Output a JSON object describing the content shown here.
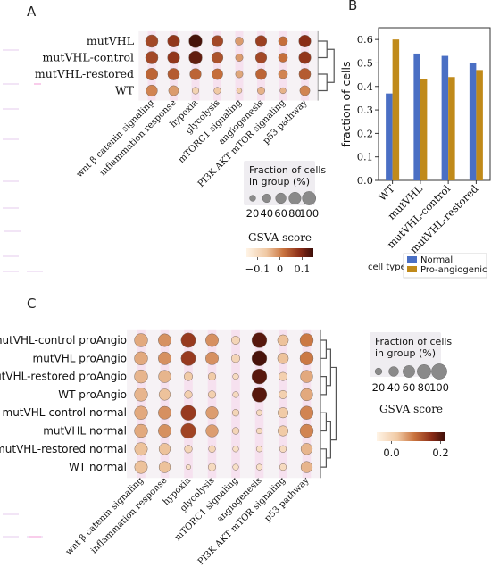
{
  "panel_labels": [
    "A",
    "B",
    "C"
  ],
  "colors": {
    "normal": "#4a6fc4",
    "proangio": "#c08a1a",
    "gsva_low": "#fff4e6",
    "gsva_high": "#3a0d08",
    "dendrogram": "#555555",
    "pink_marks": "#f5a6dc"
  },
  "chart_data": [
    {
      "panel": "A",
      "type": "heatmap",
      "rows": [
        "mutVHL",
        "mutVHL-control",
        "mutVHL-restored",
        "WT"
      ],
      "columns": [
        "wnt β catenin signaling",
        "inflammation response",
        "hypoxia",
        "glycolysis",
        "mTORC1 signaling",
        "angiogenesis",
        "PI3K AKT mTOR signaling",
        "p53 pathway"
      ],
      "fraction_pct": [
        [
          85,
          80,
          95,
          70,
          35,
          70,
          45,
          80
        ],
        [
          85,
          80,
          95,
          70,
          30,
          70,
          45,
          80
        ],
        [
          80,
          75,
          70,
          65,
          30,
          65,
          45,
          75
        ],
        [
          70,
          55,
          25,
          25,
          15,
          30,
          20,
          55
        ]
      ],
      "gsva": [
        [
          0.06,
          0.08,
          0.14,
          0.06,
          -0.02,
          0.07,
          0.02,
          0.09
        ],
        [
          0.06,
          0.08,
          0.12,
          0.05,
          -0.02,
          0.06,
          0.02,
          0.08
        ],
        [
          0.03,
          0.04,
          0.03,
          0.02,
          -0.03,
          0.03,
          0.0,
          0.04
        ],
        [
          0.0,
          -0.02,
          -0.08,
          -0.06,
          -0.07,
          -0.04,
          -0.04,
          0.0
        ]
      ],
      "size_legend": {
        "title": "Fraction of cells\nin group (%)",
        "values": [
          20,
          40,
          60,
          80,
          100
        ]
      },
      "color_legend": {
        "title": "GSVA score",
        "ticks": [
          "−0.1",
          "0",
          "0.1"
        ],
        "range": [
          -0.15,
          0.15
        ]
      }
    },
    {
      "panel": "B",
      "type": "bar",
      "categories": [
        "WT",
        "mutVHL",
        "mutVHL-control",
        "mutVHL-restored"
      ],
      "series": [
        {
          "name": "Normal",
          "values": [
            0.37,
            0.54,
            0.53,
            0.5
          ]
        },
        {
          "name": "Pro-angiogenic",
          "values": [
            0.6,
            0.43,
            0.44,
            0.47
          ]
        }
      ],
      "ylabel": "fraction of cells",
      "ylim": [
        0,
        0.65
      ],
      "yticks": [
        0.0,
        0.1,
        0.2,
        0.3,
        0.4,
        0.5,
        0.6
      ],
      "legend_title": "cell type",
      "legend_position": "bottom"
    },
    {
      "panel": "C",
      "type": "heatmap",
      "rows": [
        "mutVHL-control proAngio",
        "mutVHL proAngio",
        "mutVHL-restored proAngio",
        "WT proAngio",
        "mutVHL-control normal",
        "mutVHL normal",
        "mutVHL-restored normal",
        "WT normal"
      ],
      "columns": [
        "wnt β catenin signaling",
        "inflammation response",
        "hypoxia",
        "glycolysis",
        "mTORC1 signaling",
        "angiogenesis",
        "PI3K AKT mTOR signaling",
        "p53 pathway"
      ],
      "fraction_pct": [
        [
          75,
          70,
          90,
          70,
          30,
          95,
          50,
          75
        ],
        [
          75,
          70,
          90,
          70,
          30,
          95,
          50,
          75
        ],
        [
          75,
          65,
          30,
          25,
          15,
          95,
          30,
          65
        ],
        [
          75,
          55,
          25,
          25,
          15,
          95,
          30,
          65
        ],
        [
          75,
          70,
          95,
          65,
          20,
          15,
          45,
          75
        ],
        [
          75,
          70,
          95,
          65,
          20,
          15,
          45,
          75
        ],
        [
          70,
          55,
          25,
          20,
          15,
          15,
          20,
          55
        ],
        [
          70,
          55,
          10,
          25,
          15,
          15,
          20,
          55
        ]
      ],
      "gsva": [
        [
          0.05,
          0.07,
          0.15,
          0.07,
          0.0,
          0.2,
          0.03,
          0.09
        ],
        [
          0.05,
          0.07,
          0.15,
          0.07,
          0.0,
          0.21,
          0.03,
          0.09
        ],
        [
          0.04,
          0.04,
          0.02,
          0.02,
          -0.01,
          0.2,
          0.01,
          0.05
        ],
        [
          0.04,
          0.03,
          0.01,
          0.01,
          -0.01,
          0.2,
          0.01,
          0.05
        ],
        [
          0.05,
          0.07,
          0.15,
          0.06,
          0.0,
          -0.01,
          0.02,
          0.08
        ],
        [
          0.05,
          0.07,
          0.14,
          0.06,
          0.0,
          -0.01,
          0.02,
          0.08
        ],
        [
          0.03,
          0.03,
          0.0,
          0.0,
          -0.02,
          -0.02,
          -0.01,
          0.04
        ],
        [
          0.03,
          0.03,
          -0.02,
          -0.01,
          -0.02,
          -0.02,
          -0.01,
          0.04
        ]
      ],
      "size_legend": {
        "title": "Fraction of cells\nin group (%)",
        "values": [
          20,
          40,
          60,
          80,
          100
        ]
      },
      "color_legend": {
        "title": "GSVA score",
        "ticks": [
          "0.0",
          "0.2"
        ],
        "range": [
          -0.06,
          0.22
        ]
      }
    }
  ]
}
